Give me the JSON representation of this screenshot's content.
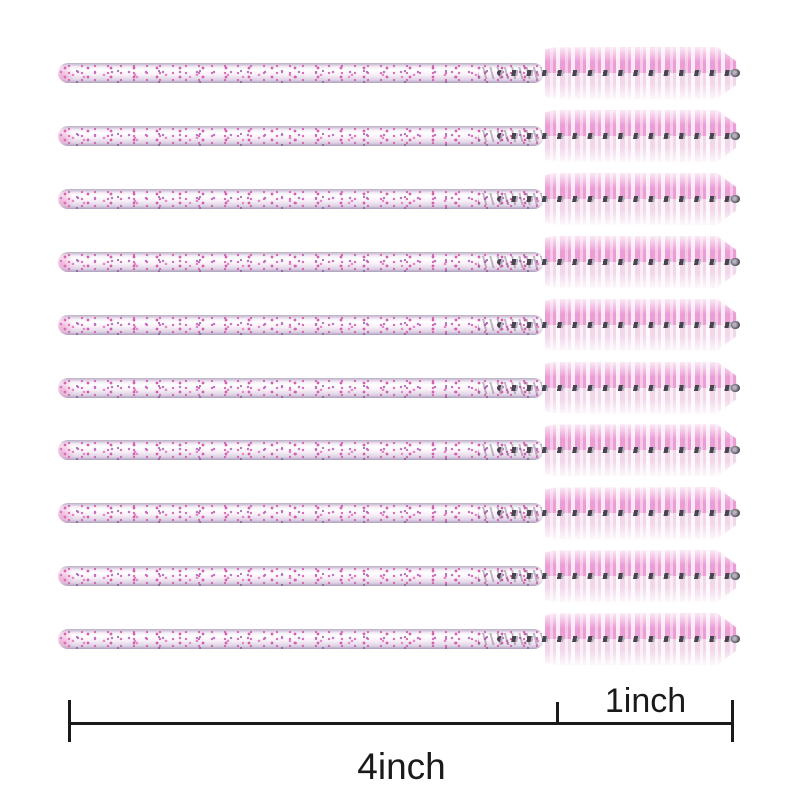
{
  "product": {
    "item": "disposable glitter eyelash mascara wands",
    "count": 10
  },
  "measurements": {
    "brush_length_label": "1inch",
    "total_length_label": "4inch"
  },
  "colors": {
    "background": "#ffffff",
    "bristle_pink": "#eb9ed6",
    "bristle_pink_light": "#f6c7e7",
    "bristle_pale": "#f2d7eb",
    "bristle_pale_light": "#faeff7",
    "wire_dark": "#4a4450",
    "wire_silver": "#b8b2c0",
    "handle_body": "#faf4fa",
    "handle_edge": "#b9aec6",
    "glitter_magenta": "#d45fae",
    "glitter_pink": "#e584c4",
    "glitter_purple": "#b66fc6",
    "glitter_dark": "#8d5b9e",
    "ruler": "#1a1a1a"
  }
}
